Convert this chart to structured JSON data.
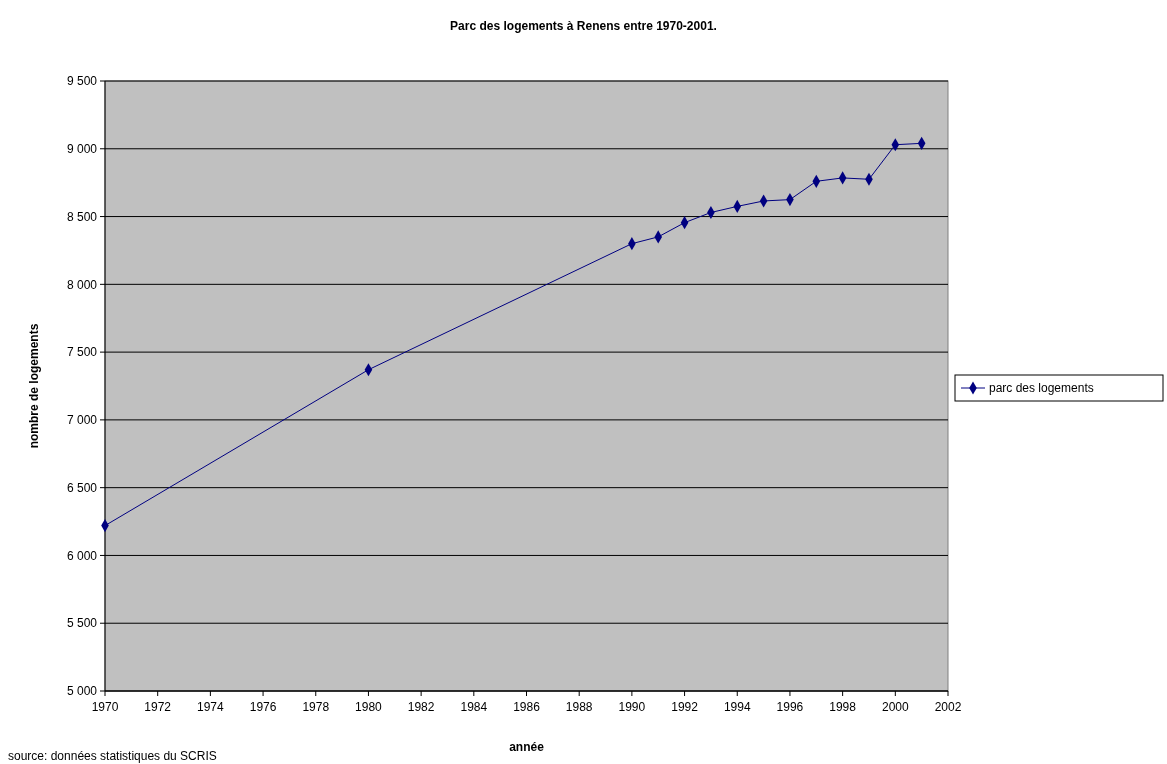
{
  "chart_data": {
    "type": "line",
    "title": "Parc des logements à Renens entre 1970-2001.",
    "xlabel": "année",
    "ylabel": "nombre de logements",
    "x": [
      1970,
      1980,
      1990,
      1991,
      1992,
      1993,
      1994,
      1995,
      1996,
      1997,
      1998,
      1999,
      2000,
      2001
    ],
    "series": [
      {
        "name": "parc des logements",
        "color": "#000080",
        "values": [
          6220,
          7370,
          8300,
          8350,
          8455,
          8530,
          8575,
          8615,
          8625,
          8760,
          8785,
          8775,
          9030,
          9040
        ]
      }
    ],
    "xlim": [
      1970,
      2002
    ],
    "xticks": [
      1970,
      1972,
      1974,
      1976,
      1978,
      1980,
      1982,
      1984,
      1986,
      1988,
      1990,
      1992,
      1994,
      1996,
      1998,
      2000,
      2002
    ],
    "ylim": [
      5000,
      9500
    ],
    "yticks": [
      {
        "value": 5000,
        "label": "5 000"
      },
      {
        "value": 5500,
        "label": "5 500"
      },
      {
        "value": 6000,
        "label": "6 000"
      },
      {
        "value": 6500,
        "label": "6 500"
      },
      {
        "value": 7000,
        "label": "7 000"
      },
      {
        "value": 7500,
        "label": "7 500"
      },
      {
        "value": 8000,
        "label": "8 000"
      },
      {
        "value": 8500,
        "label": "8 500"
      },
      {
        "value": 9000,
        "label": "9 000"
      },
      {
        "value": 9500,
        "label": "9 500"
      }
    ],
    "grid": "y",
    "legend": "right",
    "marker": "diamond",
    "line_style": "solid",
    "annotations": [
      "source: données statistiques du SCRIS"
    ]
  }
}
